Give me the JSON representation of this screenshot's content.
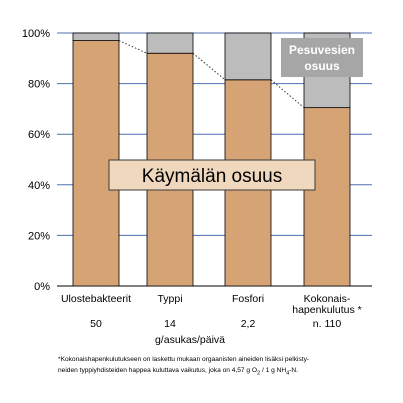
{
  "chart_data": {
    "type": "bar",
    "stacked": true,
    "categories": [
      "Ulostebakteerit",
      "Typpi",
      "Fosfori",
      "Kokonais-hapenkulutus *"
    ],
    "category_label_lines": [
      [
        "Ulostebakteerit"
      ],
      [
        "Typpi"
      ],
      [
        "Fosfori"
      ],
      [
        "Kokonais-",
        "hapenkulutus *"
      ]
    ],
    "category_values": [
      "50",
      "14",
      "2,2",
      "n. 110"
    ],
    "unit_label": "g/asukas/päivä",
    "series": [
      {
        "name": "Käymälän osuus",
        "values": [
          97,
          92,
          81.5,
          70.5
        ],
        "color": "#d6a474"
      },
      {
        "name": "Pesuvesien osuus",
        "values": [
          3,
          8,
          18.5,
          29.5
        ],
        "color": "#bcbcbc"
      }
    ],
    "y_ticks": [
      "0%",
      "20%",
      "40%",
      "60%",
      "80%",
      "100%"
    ],
    "ylim": [
      0,
      100
    ],
    "grid": true,
    "grid_color": "#4f6fb0",
    "connector_lines": "dotted, linking bar tops of the lower series",
    "annotations": {
      "toilet_share": "Käymälän osuus",
      "wash_water_share_lines": [
        "Pesuvesien",
        "osuus"
      ]
    }
  },
  "footnote": {
    "line1": "*Kokonaishapenkulutukseen on laskettu mukaan orgaanisten aineiden lisäksi pelkisty-",
    "line2_before": "neiden typpiyhdisteiden happea kuluttava vaikutus, joka on 4,57 g O",
    "line2_sub1": "2",
    "line2_mid": " / 1 g NH",
    "line2_sub2": "4",
    "line2_after": "-N."
  }
}
